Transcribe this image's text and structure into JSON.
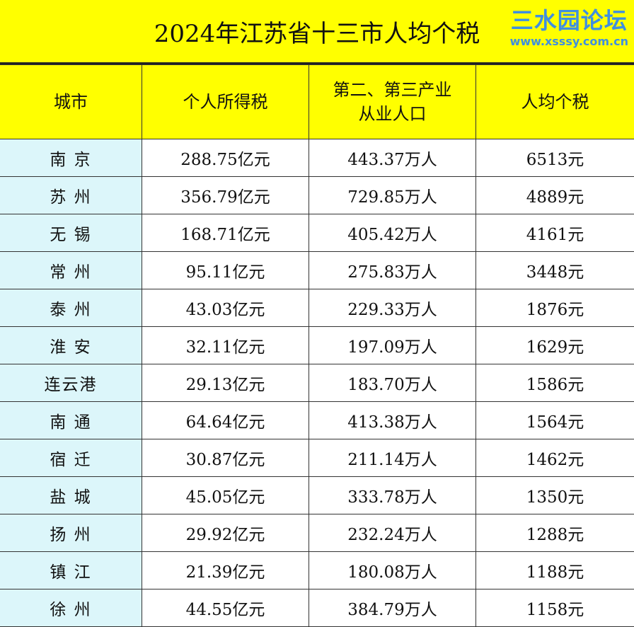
{
  "title": "2024年江苏省十三市人均个税",
  "headers": [
    "城市",
    "个人所得税",
    "第二、第三产业\n从业人口",
    "人均个税"
  ],
  "rows": [
    [
      "南 京",
      "288.75亿元",
      "443.37万人",
      "6513元"
    ],
    [
      "苏 州",
      "356.79亿元",
      "729.85万人",
      "4889元"
    ],
    [
      "无 锡",
      "168.71亿元",
      "405.42万人",
      "4161元"
    ],
    [
      "常 州",
      "95.11亿元",
      "275.83万人",
      "3448元"
    ],
    [
      "泰 州",
      "43.03亿元",
      "229.33万人",
      "1876元"
    ],
    [
      "淮 安",
      "32.11亿元",
      "197.09万人",
      "1629元"
    ],
    [
      "连云港",
      "29.13亿元",
      "183.70万人",
      "1586元"
    ],
    [
      "南 通",
      "64.64亿元",
      "413.38万人",
      "1564元"
    ],
    [
      "宿 迁",
      "30.87亿元",
      "211.14万人",
      "1462元"
    ],
    [
      "盐 城",
      "45.05亿元",
      "333.78万人",
      "1350元"
    ],
    [
      "扬 州",
      "29.92亿元",
      "232.24万人",
      "1288元"
    ],
    [
      "镇 江",
      "21.39亿元",
      "180.08万人",
      "1188元"
    ],
    [
      "徐 州",
      "44.55亿元",
      "384.79万人",
      "1158元"
    ]
  ],
  "watermark": {
    "name": "三水园论坛",
    "url": "www.xsssy.com.cn"
  },
  "colors": {
    "header_bg": "#ffff00",
    "city_bg": "#dcf6fa",
    "watermark": "#3f8fe0"
  }
}
